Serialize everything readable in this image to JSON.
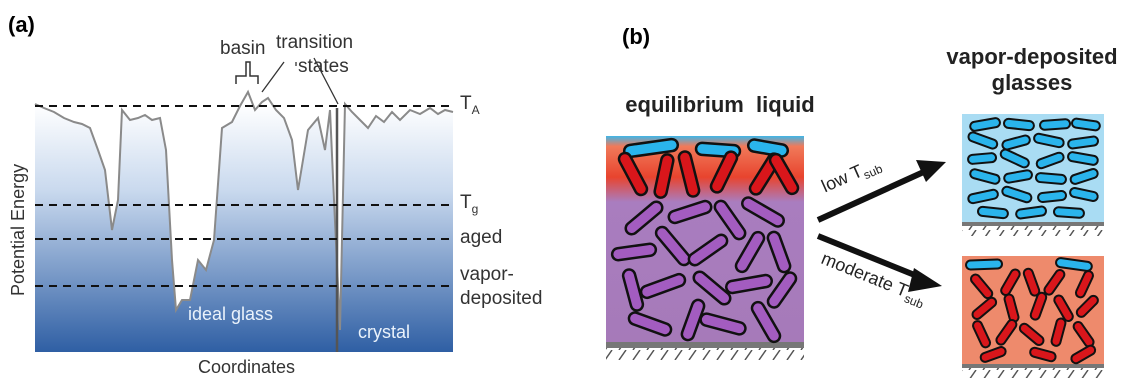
{
  "panel_a": {
    "label": "(a)",
    "y_axis_label": "Potential Energy",
    "x_axis_label": "Coordinates",
    "annotations": {
      "basin": "basin",
      "transition_line1": "transition",
      "transition_line2": "states",
      "ta": "T",
      "ta_sub": "A",
      "tg": "T",
      "tg_sub": "g",
      "aged": "aged",
      "vapor_line1": "vapor-",
      "vapor_line2": "deposited",
      "ideal_glass": "ideal glass",
      "crystal": "crystal"
    },
    "colors": {
      "gradient_top": "#ffffff",
      "gradient_bottom": "#2f5fa4",
      "curve": "#8a8a8a",
      "dashed": "#111111"
    }
  },
  "panel_b": {
    "label": "(b)",
    "left_title": "equilibrium  liquid",
    "right_title_line1": "vapor-deposited",
    "right_title_line2": "glasses",
    "arrow_low_prefix": "low T",
    "arrow_low_sub": "sub",
    "arrow_moderate_prefix": "moderate T",
    "arrow_moderate_sub": "sub",
    "colors": {
      "liquid_purple": "#a679bc",
      "surface_red": "#e8432e",
      "surface_blue": "#35b6ea",
      "low_glass_bg": "#a9dcf3",
      "moderate_glass_bg": "#ee8a6c",
      "rod_purple": "#a35cc0",
      "rod_red": "#d9161b",
      "rod_blue": "#2ab4ec"
    }
  }
}
